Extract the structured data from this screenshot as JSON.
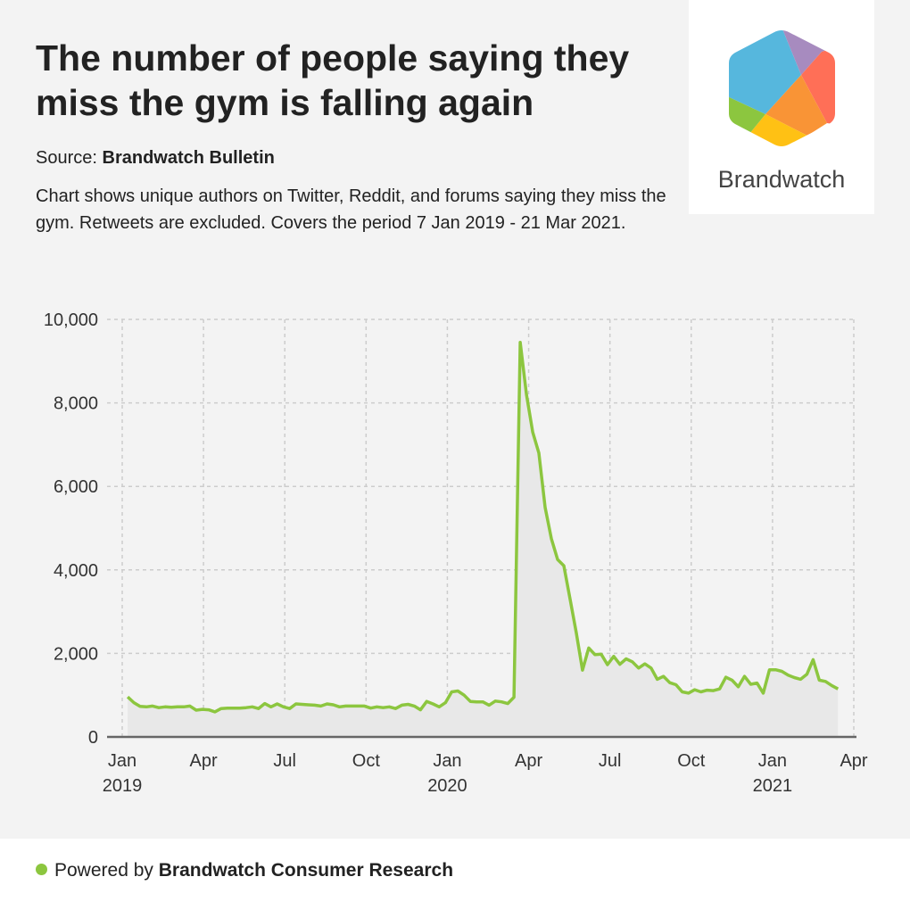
{
  "title": "The number of people saying they miss the gym is falling again",
  "source_label": "Source:",
  "source_name": "Brandwatch Bulletin",
  "description": "Chart shows unique authors on Twitter, Reddit, and forums saying they miss the gym. Retweets are excluded. Covers the period 7 Jan 2019 - 21 Mar 2021.",
  "logo": {
    "text": "Brandwatch"
  },
  "footer": {
    "prefix": "Powered by",
    "brand": "Brandwatch Consumer Research"
  },
  "colors": {
    "line": "#8cc63f",
    "area": "#e8e8e8",
    "grid": "#cccccc",
    "axis": "#666666"
  },
  "chart_data": {
    "type": "area",
    "title": "",
    "xlabel": "",
    "ylabel": "",
    "ylim": [
      0,
      10000
    ],
    "yticks": [
      0,
      2000,
      4000,
      6000,
      8000,
      10000
    ],
    "ytick_labels": [
      "0",
      "2,000",
      "4,000",
      "6,000",
      "8,000",
      "10,000"
    ],
    "xticks": [
      {
        "label": "Jan",
        "sub": "2019",
        "month": 0
      },
      {
        "label": "Apr",
        "sub": "",
        "month": 3
      },
      {
        "label": "Jul",
        "sub": "",
        "month": 6
      },
      {
        "label": "Oct",
        "sub": "",
        "month": 9
      },
      {
        "label": "Jan",
        "sub": "2020",
        "month": 12
      },
      {
        "label": "Apr",
        "sub": "",
        "month": 15
      },
      {
        "label": "Jul",
        "sub": "",
        "month": 18
      },
      {
        "label": "Oct",
        "sub": "",
        "month": 21
      },
      {
        "label": "Jan",
        "sub": "2021",
        "month": 24
      },
      {
        "label": "Apr",
        "sub": "",
        "month": 27
      }
    ],
    "grid": true,
    "x_start": "2019-01-07",
    "x_interval": "weekly",
    "series": [
      {
        "name": "Unique authors",
        "values": [
          960,
          820,
          730,
          720,
          740,
          700,
          720,
          710,
          720,
          720,
          740,
          640,
          660,
          650,
          600,
          680,
          690,
          690,
          690,
          700,
          720,
          680,
          800,
          720,
          790,
          720,
          680,
          790,
          780,
          770,
          760,
          740,
          790,
          770,
          720,
          740,
          740,
          740,
          740,
          690,
          720,
          700,
          720,
          680,
          760,
          780,
          740,
          650,
          850,
          790,
          720,
          820,
          1080,
          1100,
          1000,
          850,
          840,
          840,
          760,
          860,
          840,
          800,
          950,
          9450,
          8200,
          7300,
          6800,
          5500,
          4750,
          4250,
          4100,
          3300,
          2500,
          1600,
          2130,
          1970,
          1980,
          1730,
          1930,
          1740,
          1870,
          1800,
          1650,
          1750,
          1650,
          1380,
          1450,
          1300,
          1250,
          1080,
          1050,
          1130,
          1080,
          1120,
          1110,
          1150,
          1430,
          1360,
          1200,
          1450,
          1260,
          1290,
          1050,
          1610,
          1610,
          1570,
          1480,
          1420,
          1380,
          1500,
          1850,
          1360,
          1330,
          1230,
          1150
        ]
      }
    ]
  }
}
